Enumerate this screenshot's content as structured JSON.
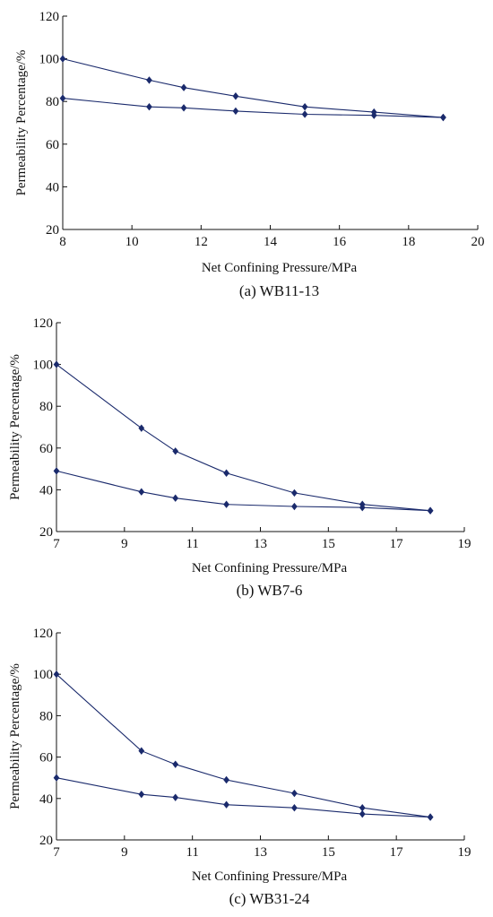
{
  "chart_data": [
    {
      "type": "line",
      "caption": "(a) WB11-13",
      "xlabel": "Net Confining Pressure/MPa",
      "ylabel": "Permeability Percentage/%",
      "xlim": [
        8,
        20
      ],
      "ylim": [
        20,
        120
      ],
      "xticks": [
        "8",
        "10",
        "12",
        "14",
        "16",
        "18",
        "20"
      ],
      "yticks": [
        "20",
        "40",
        "60",
        "80",
        "100",
        "120"
      ],
      "series": [
        {
          "x": [
            8,
            10.5,
            11.5,
            13,
            15,
            17,
            19
          ],
          "values": [
            100,
            90,
            86.5,
            82.5,
            77.5,
            75,
            72.5
          ]
        },
        {
          "x": [
            8,
            10.5,
            11.5,
            13,
            15,
            17,
            19
          ],
          "values": [
            81.5,
            77.5,
            77,
            75.5,
            74,
            73.5,
            72.5
          ]
        }
      ]
    },
    {
      "type": "line",
      "caption": "(b) WB7-6",
      "xlabel": "Net Confining Pressure/MPa",
      "ylabel": "Permeability Percentage/%",
      "xlim": [
        7,
        19
      ],
      "ylim": [
        20,
        120
      ],
      "xticks": [
        "7",
        "9",
        "11",
        "13",
        "15",
        "17",
        "19"
      ],
      "yticks": [
        "20",
        "40",
        "60",
        "80",
        "100",
        "120"
      ],
      "series": [
        {
          "x": [
            7,
            9.5,
            10.5,
            12,
            14,
            16,
            18
          ],
          "values": [
            100,
            69.5,
            58.5,
            48,
            38.5,
            33,
            30
          ]
        },
        {
          "x": [
            7,
            9.5,
            10.5,
            12,
            14,
            16,
            18
          ],
          "values": [
            49,
            39,
            36,
            33,
            32,
            31.5,
            30
          ]
        }
      ]
    },
    {
      "type": "line",
      "caption": "(c) WB31-24",
      "xlabel": "Net Confining Pressure/MPa",
      "ylabel": "Permeability Percentage/%",
      "xlim": [
        7,
        19
      ],
      "ylim": [
        20,
        120
      ],
      "xticks": [
        "7",
        "9",
        "11",
        "13",
        "15",
        "17",
        "19"
      ],
      "yticks": [
        "20",
        "40",
        "60",
        "80",
        "100",
        "120"
      ],
      "series": [
        {
          "x": [
            7,
            9.5,
            10.5,
            12,
            14,
            16,
            18
          ],
          "values": [
            100,
            63,
            56.5,
            49,
            42.5,
            35.5,
            31
          ]
        },
        {
          "x": [
            7,
            9.5,
            10.5,
            12,
            14,
            16,
            18
          ],
          "values": [
            50,
            42,
            40.5,
            37,
            35.5,
            32.5,
            31
          ]
        }
      ]
    }
  ]
}
